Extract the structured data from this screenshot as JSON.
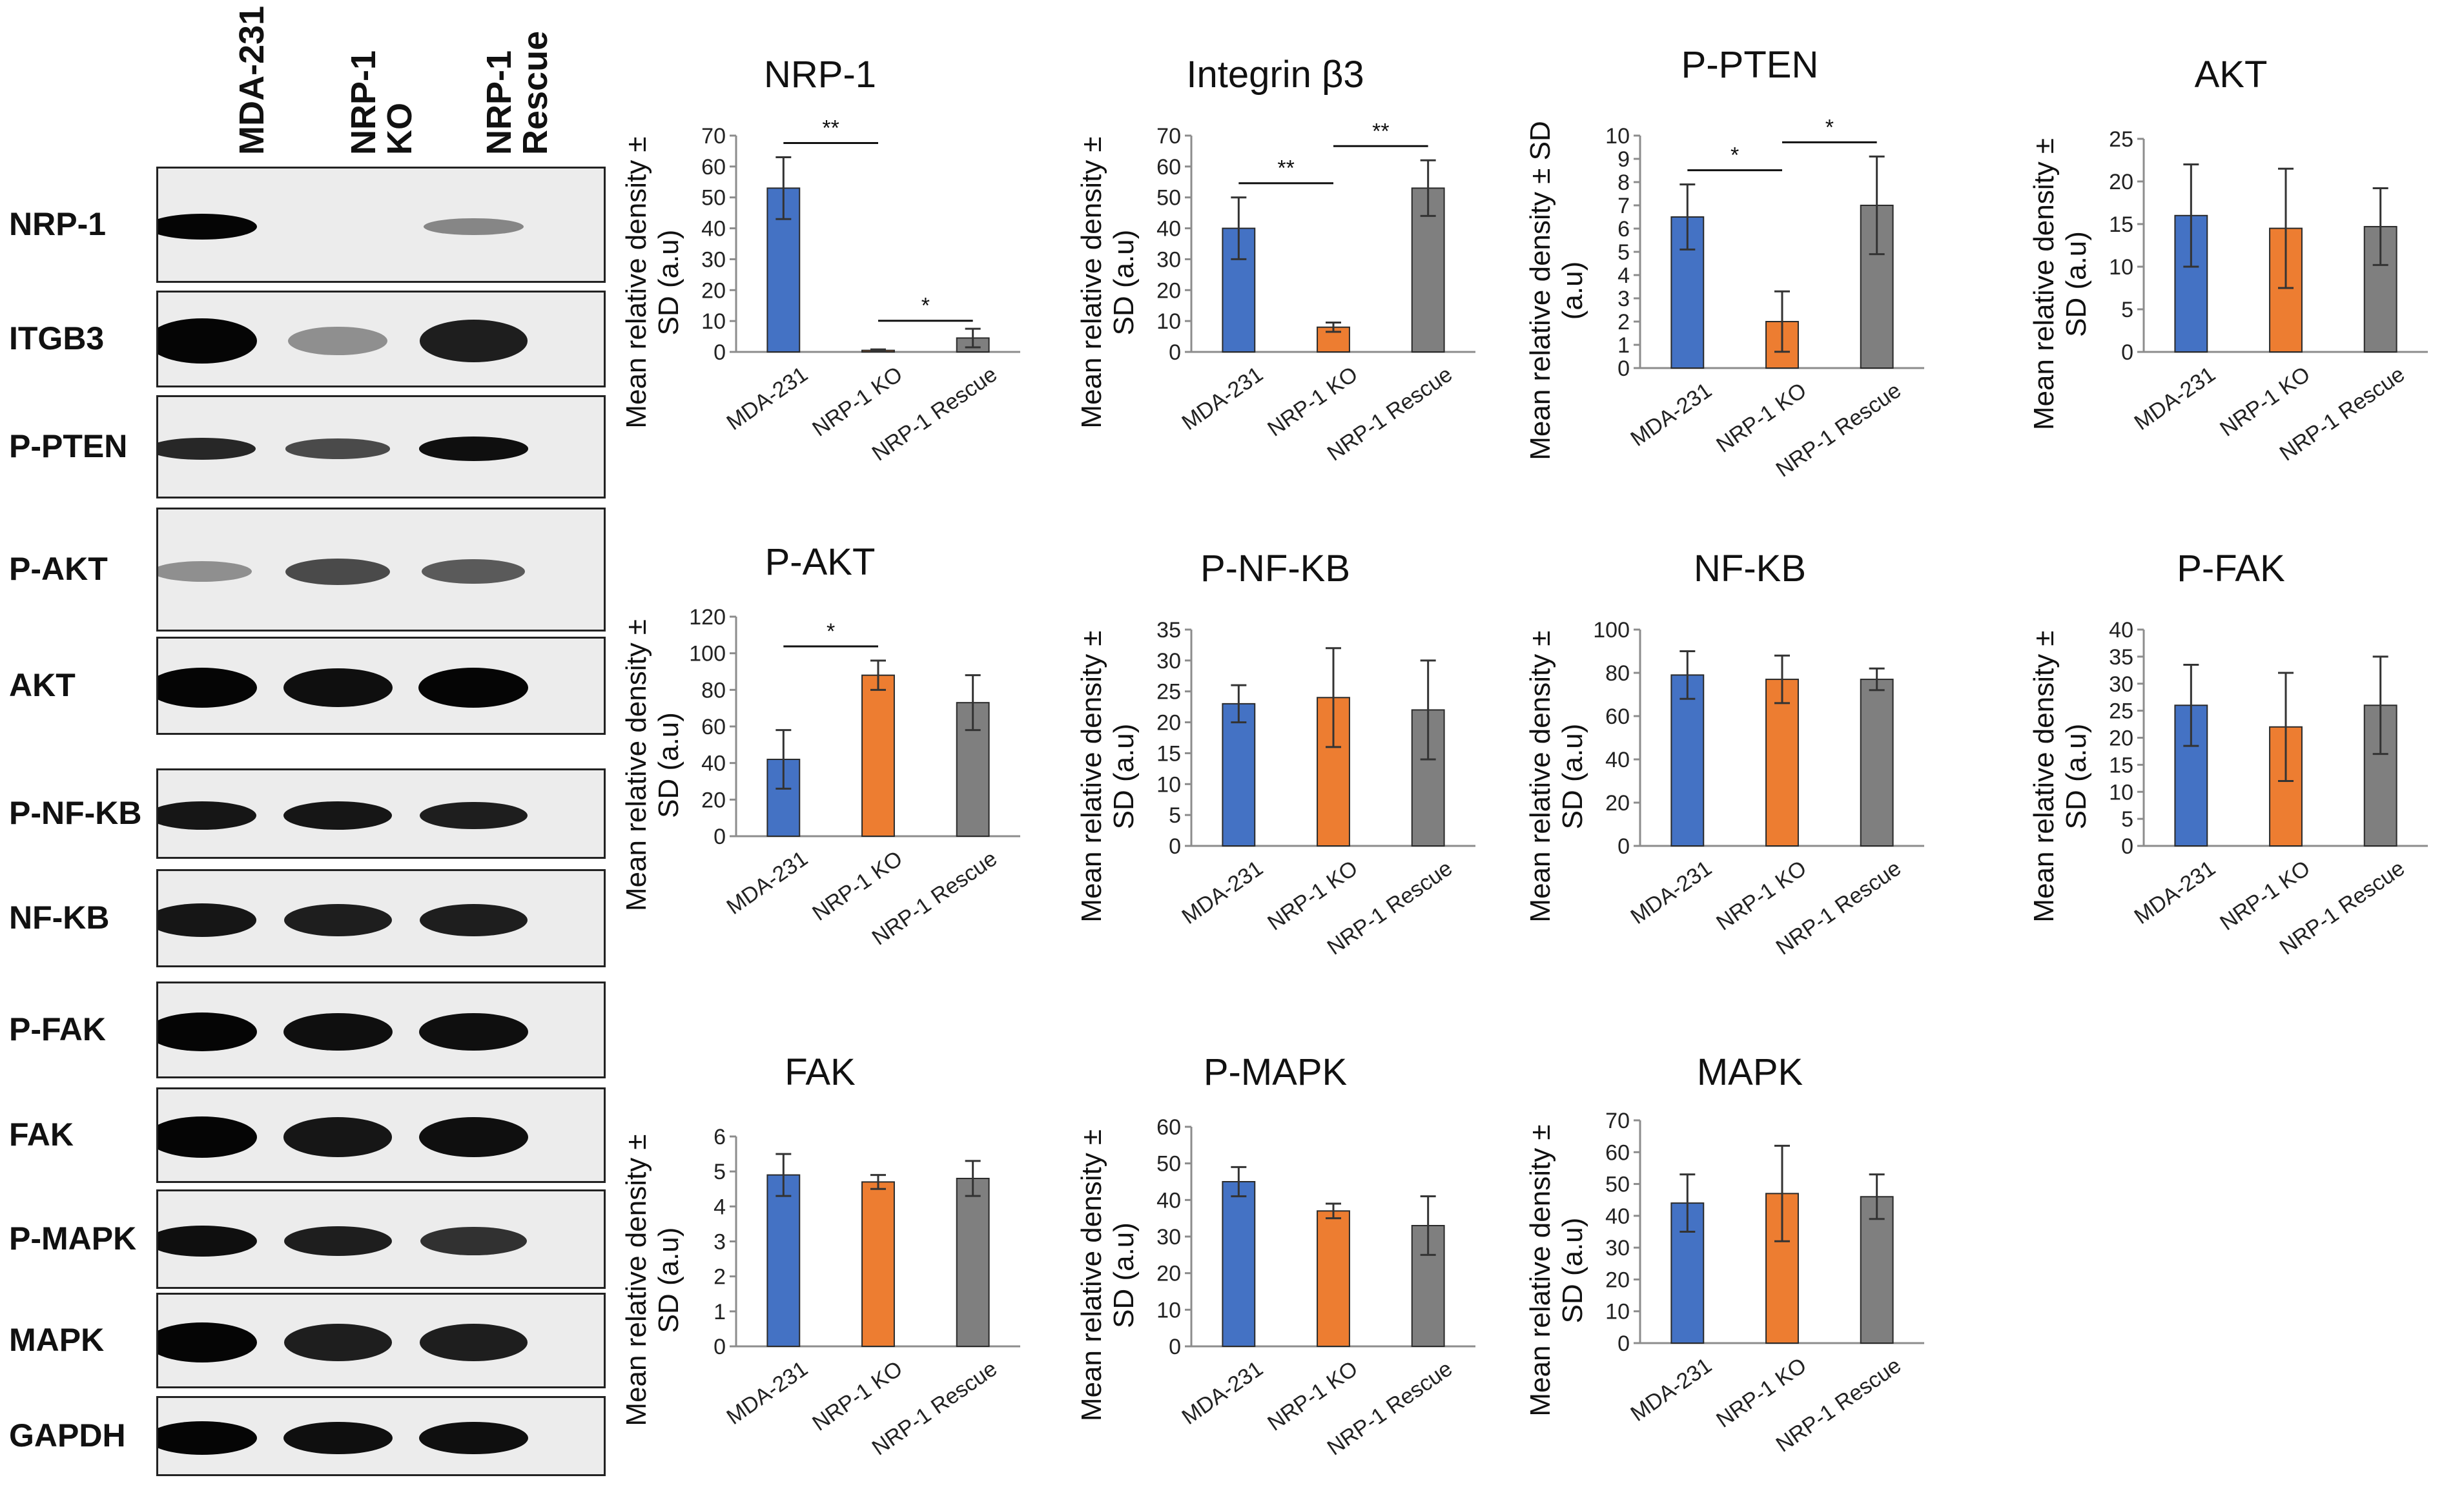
{
  "blot": {
    "lanes": [
      "MDA-231",
      "NRP-1\nKO",
      "NRP-1\nRescue"
    ],
    "bands": [
      {
        "label": "NRP-1",
        "intensity": [
          1.0,
          0.0,
          0.25
        ]
      },
      {
        "label": "ITGB3",
        "intensity": [
          1.0,
          0.2,
          0.85
        ]
      },
      {
        "label": "P-PTEN",
        "intensity": [
          0.8,
          0.6,
          0.95
        ]
      },
      {
        "label": "P-AKT",
        "intensity": [
          0.2,
          0.6,
          0.5
        ]
      },
      {
        "label": "AKT",
        "intensity": [
          1.0,
          0.95,
          1.0
        ]
      },
      {
        "label": "P-NF-KB",
        "intensity": [
          0.9,
          0.9,
          0.85
        ]
      },
      {
        "label": "NF-KB",
        "intensity": [
          0.9,
          0.85,
          0.85
        ]
      },
      {
        "label": "P-FAK",
        "intensity": [
          1.0,
          0.95,
          0.95
        ]
      },
      {
        "label": "FAK",
        "intensity": [
          1.0,
          0.9,
          0.95
        ]
      },
      {
        "label": "P-MAPK",
        "intensity": [
          0.95,
          0.85,
          0.75
        ]
      },
      {
        "label": "MAPK",
        "intensity": [
          1.0,
          0.85,
          0.85
        ]
      },
      {
        "label": "GAPDH",
        "intensity": [
          1.0,
          0.95,
          0.95
        ]
      }
    ]
  },
  "colors": {
    "MDA-231": "#4472c4",
    "NRP-1 KO": "#ed7d31",
    "NRP-1 Rescue": "#7f7f7f"
  },
  "chart_data": [
    {
      "type": "bar",
      "title": "NRP-1",
      "ylabel": "Mean relative density ±\nSD (a.u)",
      "categories": [
        "MDA-231",
        "NRP-1 KO",
        "NRP-1 Rescue"
      ],
      "values": [
        53,
        0.5,
        4.5
      ],
      "errors": [
        10,
        0.3,
        3
      ],
      "ylim": [
        0,
        70
      ],
      "ystep": 10,
      "significance": [
        {
          "from": 0,
          "to": 1,
          "label": "**"
        },
        {
          "from": 1,
          "to": 2,
          "label": "*"
        }
      ]
    },
    {
      "type": "bar",
      "title": "Integrin β3",
      "ylabel": "Mean relative density ±\nSD (a.u)",
      "categories": [
        "MDA-231",
        "NRP-1 KO",
        "NRP-1 Rescue"
      ],
      "values": [
        40,
        8,
        53
      ],
      "errors": [
        10,
        1.5,
        9
      ],
      "ylim": [
        0,
        70
      ],
      "ystep": 10,
      "significance": [
        {
          "from": 0,
          "to": 1,
          "label": "**"
        },
        {
          "from": 1,
          "to": 2,
          "label": "**"
        }
      ]
    },
    {
      "type": "bar",
      "title": "P-PTEN",
      "ylabel": "Mean relative density ± SD\n(a.u)",
      "categories": [
        "MDA-231",
        "NRP-1 KO",
        "NRP-1 Rescue"
      ],
      "values": [
        6.5,
        2,
        7
      ],
      "errors": [
        1.4,
        1.3,
        2.1
      ],
      "ylim": [
        0,
        10
      ],
      "ystep": 1,
      "significance": [
        {
          "from": 0,
          "to": 1,
          "label": "*"
        },
        {
          "from": 1,
          "to": 2,
          "label": "*"
        }
      ]
    },
    {
      "type": "bar",
      "title": "AKT",
      "ylabel": "Mean relative density ±\nSD (a.u)",
      "categories": [
        "MDA-231",
        "NRP-1 KO",
        "NRP-1 Rescue"
      ],
      "values": [
        16,
        14.5,
        14.7
      ],
      "errors": [
        6,
        7,
        4.5
      ],
      "ylim": [
        0,
        25
      ],
      "ystep": 5,
      "significance": []
    },
    {
      "type": "bar",
      "title": "P-AKT",
      "ylabel": "Mean relative density ±\nSD (a.u)",
      "categories": [
        "MDA-231",
        "NRP-1 KO",
        "NRP-1 Rescue"
      ],
      "values": [
        42,
        88,
        73
      ],
      "errors": [
        16,
        8,
        15
      ],
      "ylim": [
        0,
        120
      ],
      "ystep": 20,
      "significance": [
        {
          "from": 0,
          "to": 1,
          "label": "*"
        }
      ]
    },
    {
      "type": "bar",
      "title": "P-NF-KB",
      "ylabel": "Mean relative density ±\nSD (a.u)",
      "categories": [
        "MDA-231",
        "NRP-1 KO",
        "NRP-1 Rescue"
      ],
      "values": [
        23,
        24,
        22
      ],
      "errors": [
        3,
        8,
        8
      ],
      "ylim": [
        0,
        35
      ],
      "ystep": 5,
      "significance": []
    },
    {
      "type": "bar",
      "title": "NF-KB",
      "ylabel": "Mean relative density ±\nSD (a.u)",
      "categories": [
        "MDA-231",
        "NRP-1 KO",
        "NRP-1 Rescue"
      ],
      "values": [
        79,
        77,
        77
      ],
      "errors": [
        11,
        11,
        5
      ],
      "ylim": [
        0,
        100
      ],
      "ystep": 20,
      "significance": []
    },
    {
      "type": "bar",
      "title": "P-FAK",
      "ylabel": "Mean relative density ±\nSD (a.u)",
      "categories": [
        "MDA-231",
        "NRP-1 KO",
        "NRP-1 Rescue"
      ],
      "values": [
        26,
        22,
        26
      ],
      "errors": [
        7.5,
        10,
        9
      ],
      "ylim": [
        0,
        40
      ],
      "ystep": 5,
      "significance": []
    },
    {
      "type": "bar",
      "title": "FAK",
      "ylabel": "Mean relative density ±\nSD (a.u)",
      "categories": [
        "MDA-231",
        "NRP-1 KO",
        "NRP-1 Rescue"
      ],
      "values": [
        4.9,
        4.7,
        4.8
      ],
      "errors": [
        0.6,
        0.2,
        0.5
      ],
      "ylim": [
        0,
        6
      ],
      "ystep": 1,
      "significance": []
    },
    {
      "type": "bar",
      "title": "P-MAPK",
      "ylabel": "Mean relative density ±\nSD (a.u)",
      "categories": [
        "MDA-231",
        "NRP-1 KO",
        "NRP-1 Rescue"
      ],
      "values": [
        45,
        37,
        33
      ],
      "errors": [
        4,
        2,
        8
      ],
      "ylim": [
        0,
        60
      ],
      "ystep": 10,
      "significance": []
    },
    {
      "type": "bar",
      "title": "MAPK",
      "ylabel": "Mean relative density ±\nSD (a.u)",
      "categories": [
        "MDA-231",
        "NRP-1 KO",
        "NRP-1 Rescue"
      ],
      "values": [
        44,
        47,
        46
      ],
      "errors": [
        9,
        15,
        7
      ],
      "ylim": [
        0,
        70
      ],
      "ystep": 10,
      "significance": []
    }
  ]
}
